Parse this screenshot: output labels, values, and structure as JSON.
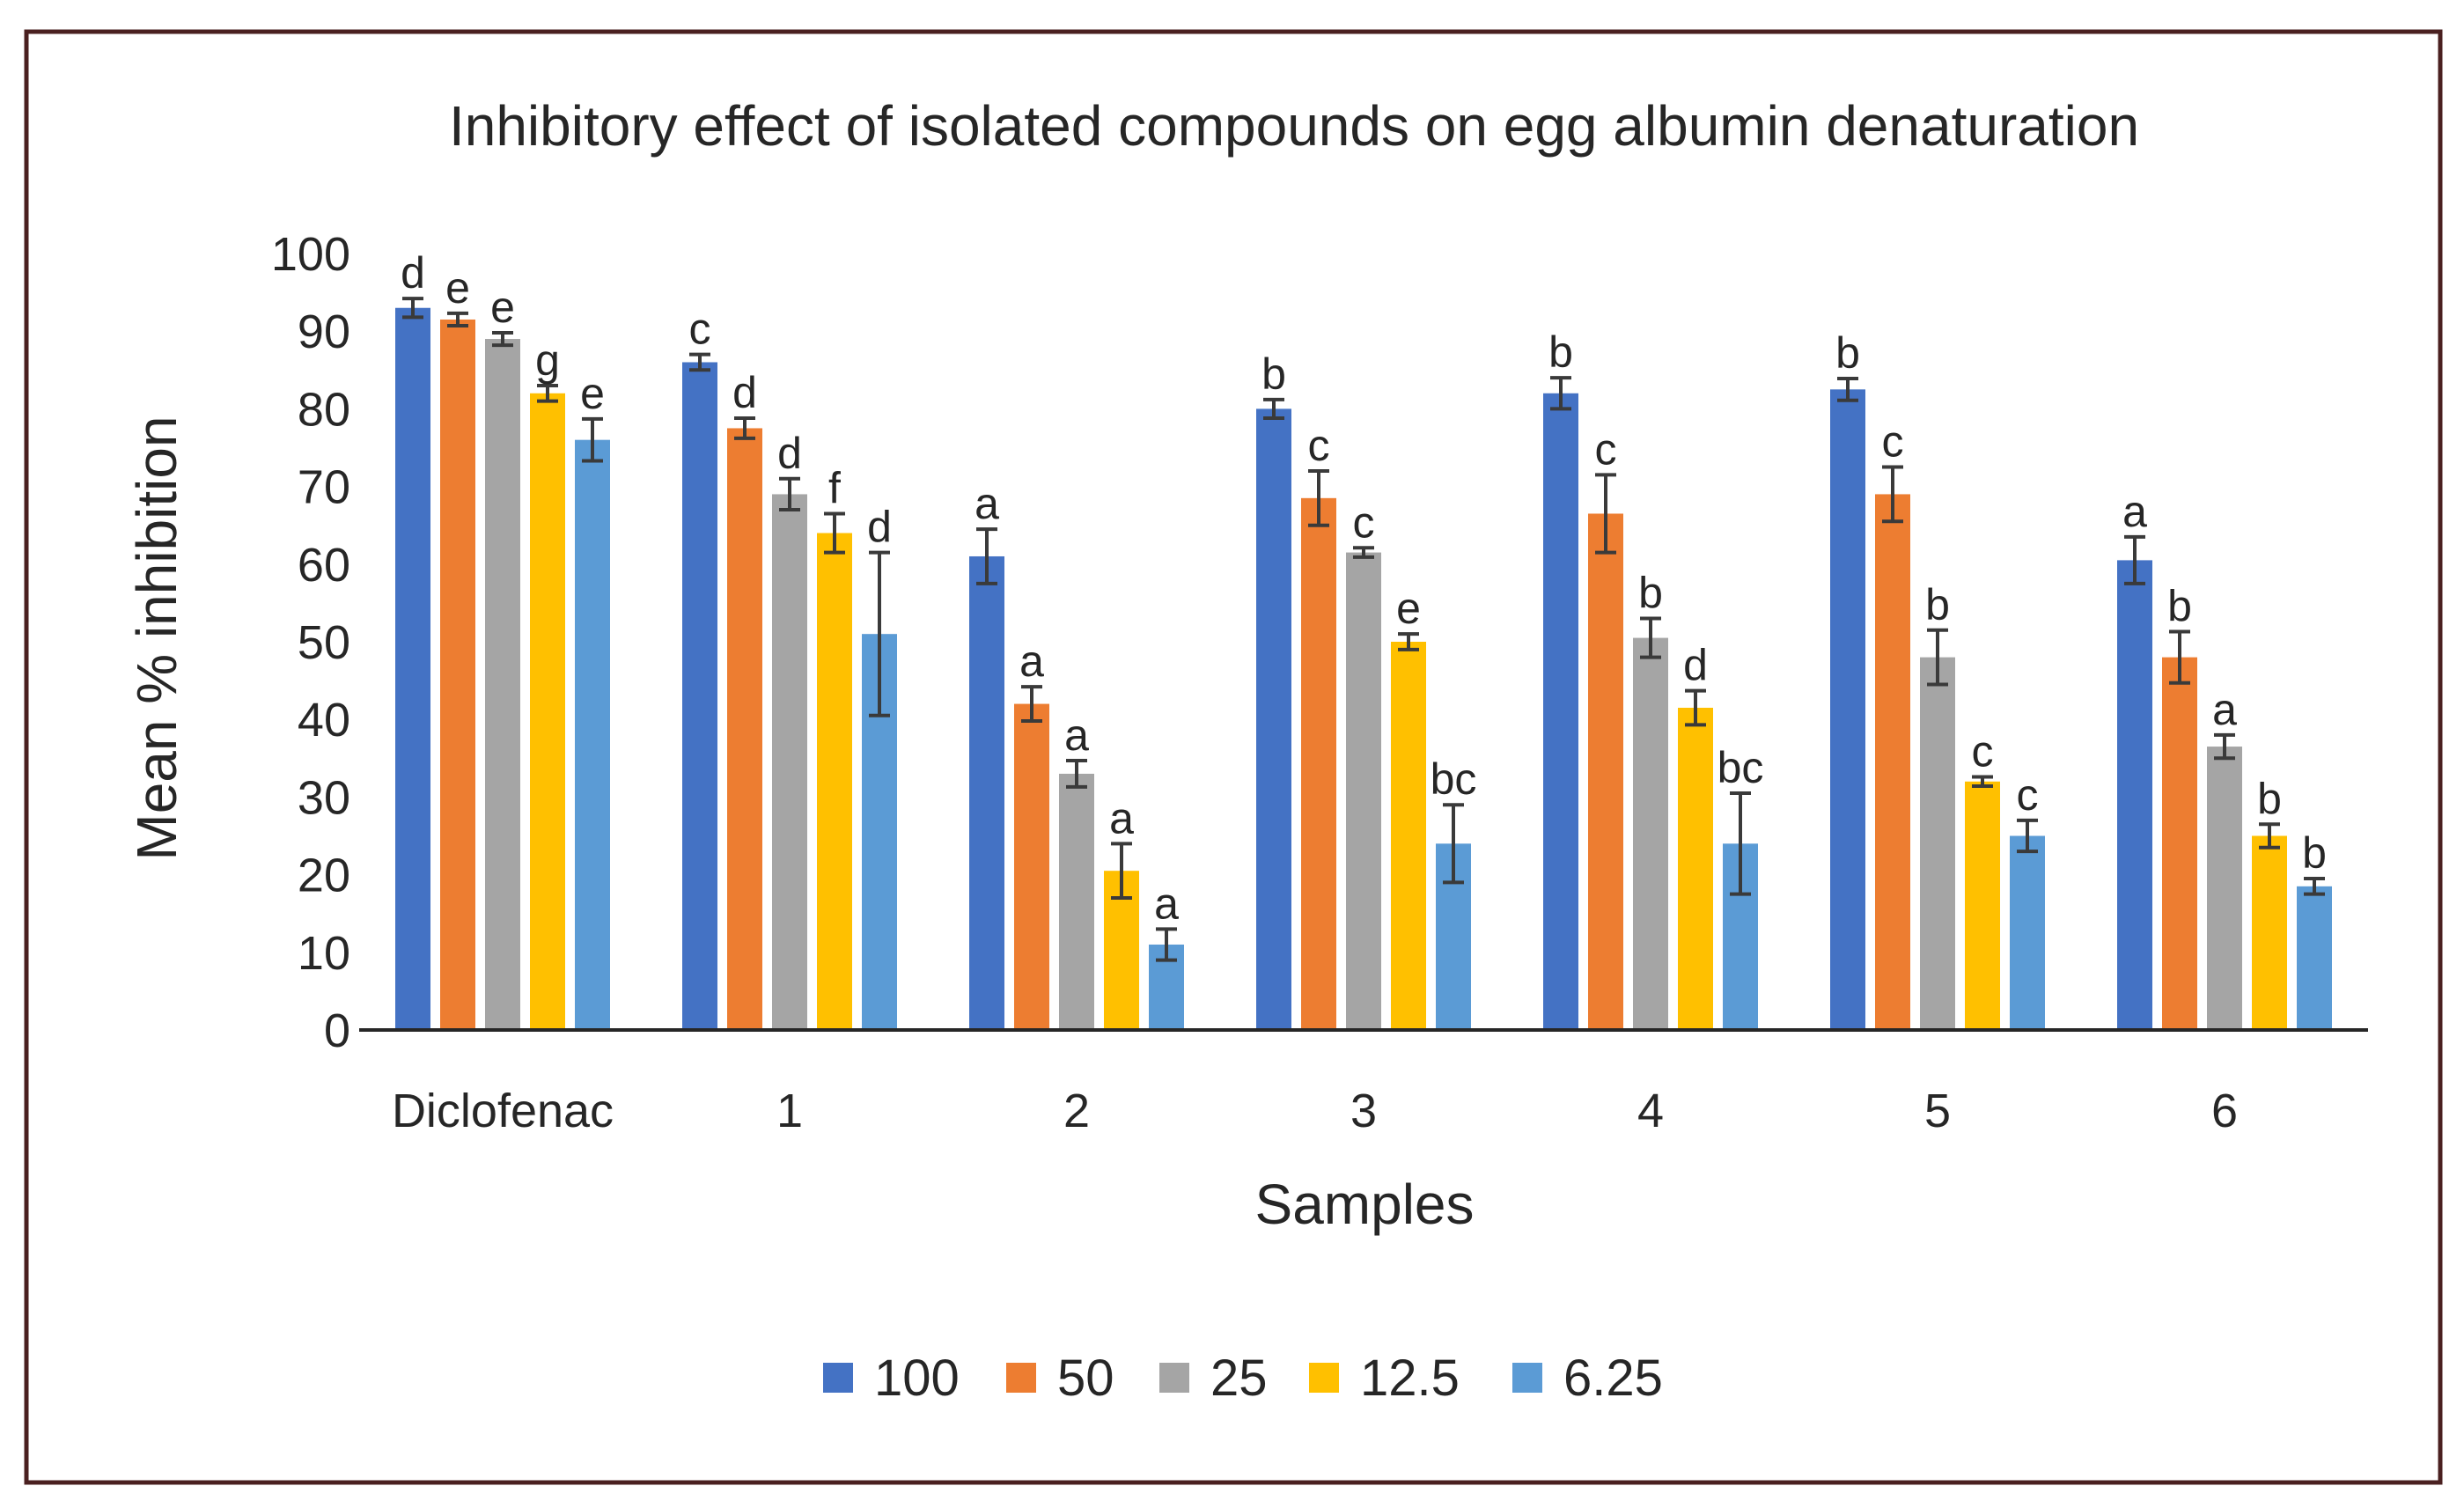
{
  "chart_data": {
    "type": "bar",
    "title": "Inhibitory effect of isolated compounds on egg albumin denaturation",
    "xlabel": "Samples",
    "ylabel": "Mean % inhibition",
    "ylim": [
      0,
      100
    ],
    "yticks": [
      0,
      10,
      20,
      30,
      40,
      50,
      60,
      70,
      80,
      90,
      100
    ],
    "grid": false,
    "legend_position": "bottom",
    "categories": [
      "Diclofenac",
      "1",
      "2",
      "3",
      "4",
      "5",
      "6"
    ],
    "series": [
      {
        "name": "100",
        "color": "#4472C4",
        "values": [
          93,
          86,
          61,
          80,
          82,
          82.5,
          60.5
        ],
        "errors": [
          1.2,
          1,
          3.5,
          1.2,
          2,
          1.4,
          3
        ],
        "labels": [
          "d",
          "c",
          "a",
          "b",
          "b",
          "b",
          "a"
        ]
      },
      {
        "name": "50",
        "color": "#ED7D31",
        "values": [
          91.5,
          77.5,
          42,
          68.5,
          66.5,
          69,
          48
        ],
        "errors": [
          0.8,
          1.3,
          2.2,
          3.5,
          5,
          3.5,
          3.3
        ],
        "labels": [
          "e",
          "d",
          "a",
          "c",
          "c",
          "c",
          "b"
        ]
      },
      {
        "name": "25",
        "color": "#A5A5A5",
        "values": [
          89,
          69,
          33,
          61.5,
          50.5,
          48,
          36.5
        ],
        "errors": [
          0.8,
          2,
          1.7,
          0.6,
          2.5,
          3.5,
          1.5
        ],
        "labels": [
          "e",
          "d",
          "a",
          "c",
          "b",
          "b",
          "a"
        ]
      },
      {
        "name": "12.5",
        "color": "#FFC000",
        "values": [
          82,
          64,
          20.5,
          50,
          41.5,
          32,
          25
        ],
        "errors": [
          1,
          2.5,
          3.5,
          1,
          2.2,
          0.6,
          1.5
        ],
        "labels": [
          "g",
          "f",
          "a",
          "e",
          "d",
          "c",
          "b"
        ]
      },
      {
        "name": "6.25",
        "color": "#5B9BD5",
        "values": [
          76,
          51,
          11,
          24,
          24,
          25,
          18.5
        ],
        "errors": [
          2.7,
          10.5,
          2,
          5,
          6.5,
          2,
          1
        ],
        "labels": [
          "e",
          "d",
          "a",
          "bc",
          "bc",
          "c",
          "b"
        ]
      }
    ]
  }
}
